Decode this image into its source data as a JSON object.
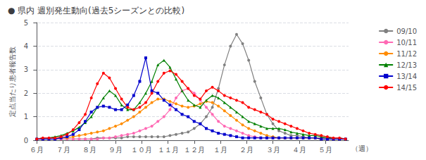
{
  "chart_data": {
    "type": "line",
    "title": "● 県内 週別発生動向(過去5シーズンとの比較)",
    "y_label": "定点当たり患者報告数",
    "x_label": "（週）",
    "x": [
      0,
      1,
      2,
      3,
      4,
      5,
      6,
      7,
      8,
      9,
      10,
      11,
      12,
      13,
      14,
      15,
      16,
      17,
      18,
      19,
      20,
      21,
      22,
      23,
      24,
      25,
      26,
      27,
      28,
      29,
      30,
      31,
      32,
      33,
      34,
      35,
      36,
      37,
      38,
      39,
      40,
      41,
      42,
      43,
      44,
      45,
      46,
      47,
      48,
      49,
      50,
      51
    ],
    "xlim": [
      -0.5,
      51.5
    ],
    "xticks": [
      {
        "value": 0,
        "label": "６月"
      },
      {
        "value": 4.333333333333333,
        "label": "７月"
      },
      {
        "value": 8.666666666666666,
        "label": "８月"
      },
      {
        "value": 13,
        "label": "９月"
      },
      {
        "value": 17.333333333333332,
        "label": "１０月"
      },
      {
        "value": 21.666666666666664,
        "label": "１１月"
      },
      {
        "value": 26,
        "label": "１２月"
      },
      {
        "value": 30.333333333333332,
        "label": "１月"
      },
      {
        "value": 34.666666666666664,
        "label": "２月"
      },
      {
        "value": 39,
        "label": "３月"
      },
      {
        "value": 43.33333333333333,
        "label": "４月"
      },
      {
        "value": 47.666666666666664,
        "label": "５月"
      }
    ],
    "ylim": [
      0,
      5
    ],
    "yticks": [
      0,
      1,
      2,
      3,
      4,
      5
    ],
    "grid": true,
    "legend": "right",
    "series": [
      {
        "name": "09/10",
        "color": "#808080",
        "marker": "circle",
        "values": [
          0.05,
          0.05,
          0.05,
          0.05,
          0.05,
          0.05,
          0.05,
          0.05,
          0.05,
          0.05,
          0.1,
          0.1,
          0.1,
          0.1,
          0.1,
          0.15,
          0.15,
          0.15,
          0.15,
          0.15,
          0.15,
          0.15,
          0.2,
          0.25,
          0.3,
          0.35,
          0.5,
          0.7,
          1.0,
          1.4,
          2.2,
          3.2,
          4.0,
          4.5,
          4.1,
          3.4,
          2.5,
          1.8,
          1.1,
          0.7,
          0.4,
          0.3,
          0.2,
          0.2,
          0.15,
          0.1,
          0.1,
          0.1,
          0.1,
          0.05,
          0.05,
          0.05
        ]
      },
      {
        "name": "10/11",
        "color": "#FF69B4",
        "marker": "circle",
        "values": [
          0.05,
          0.05,
          0.05,
          0.05,
          0.05,
          0.05,
          0.05,
          0.05,
          0.05,
          0.05,
          0.05,
          0.1,
          0.1,
          0.15,
          0.2,
          0.25,
          0.3,
          0.4,
          0.5,
          0.6,
          0.8,
          1.0,
          1.3,
          1.8,
          2.1,
          2.2,
          2.0,
          1.7,
          1.4,
          1.1,
          0.8,
          0.6,
          0.5,
          0.4,
          0.3,
          0.2,
          0.15,
          0.1,
          0.1,
          0.1,
          0.1,
          0.1,
          0.1,
          0.1,
          0.1,
          0.1,
          0.1,
          0.05,
          0.05,
          0.05,
          0.05,
          0.05
        ]
      },
      {
        "name": "11/12",
        "color": "#FF8C00",
        "marker": "circle",
        "values": [
          0.05,
          0.05,
          0.05,
          0.05,
          0.1,
          0.1,
          0.15,
          0.2,
          0.25,
          0.3,
          0.35,
          0.4,
          0.5,
          0.6,
          0.7,
          0.85,
          1.0,
          1.2,
          1.4,
          1.6,
          1.75,
          1.75,
          1.65,
          1.55,
          1.45,
          1.4,
          1.45,
          1.55,
          1.65,
          1.6,
          1.45,
          1.25,
          1.05,
          0.85,
          0.65,
          0.5,
          0.4,
          0.3,
          0.2,
          0.15,
          0.1,
          0.1,
          0.1,
          0.1,
          0.1,
          0.1,
          0.1,
          0.05,
          0.05,
          0.05,
          0.05,
          0.05
        ]
      },
      {
        "name": "12/13",
        "color": "#008000",
        "marker": "triangle",
        "values": [
          0.05,
          0.1,
          0.1,
          0.15,
          0.2,
          0.3,
          0.4,
          0.55,
          0.75,
          1.0,
          1.4,
          1.8,
          2.1,
          1.9,
          1.5,
          1.3,
          1.3,
          1.6,
          2.0,
          2.5,
          3.2,
          3.4,
          3.1,
          2.6,
          2.1,
          1.7,
          1.5,
          1.4,
          1.7,
          1.9,
          1.8,
          1.6,
          1.4,
          1.2,
          1.0,
          0.8,
          0.7,
          0.6,
          0.5,
          0.5,
          0.5,
          0.45,
          0.35,
          0.3,
          0.25,
          0.2,
          0.2,
          0.15,
          0.1,
          0.1,
          0.1,
          0.05
        ]
      },
      {
        "name": "13/14",
        "color": "#0000CD",
        "marker": "square",
        "values": [
          0.05,
          0.05,
          0.05,
          0.05,
          0.1,
          0.15,
          0.25,
          0.45,
          0.8,
          1.2,
          1.4,
          1.45,
          1.4,
          1.3,
          1.3,
          1.5,
          1.9,
          2.5,
          3.5,
          2.1,
          2.0,
          1.7,
          1.5,
          1.3,
          1.1,
          1.0,
          0.8,
          0.7,
          0.5,
          0.4,
          0.3,
          0.25,
          0.2,
          0.15,
          0.1,
          0.1,
          0.1,
          0.1,
          0.1,
          0.1,
          0.1,
          0.1,
          0.1,
          0.1,
          0.1,
          0.1,
          0.1,
          0.05,
          0.05,
          0.05,
          0.05,
          0.05
        ]
      },
      {
        "name": "14/15",
        "color": "#FF0000",
        "marker": "circle",
        "values": [
          0.05,
          0.1,
          0.1,
          0.1,
          0.15,
          0.25,
          0.45,
          0.75,
          1.1,
          1.8,
          2.4,
          2.85,
          2.65,
          2.2,
          1.75,
          1.4,
          1.3,
          1.4,
          1.6,
          2.0,
          2.5,
          2.85,
          2.95,
          2.8,
          2.5,
          2.2,
          1.9,
          1.75,
          2.1,
          2.25,
          2.1,
          1.9,
          1.8,
          1.7,
          1.6,
          1.4,
          1.3,
          1.2,
          1.1,
          0.9,
          0.8,
          0.7,
          0.6,
          0.5,
          0.4,
          0.3,
          0.25,
          0.2,
          0.15,
          0.1,
          0.1,
          0.05
        ]
      }
    ]
  }
}
